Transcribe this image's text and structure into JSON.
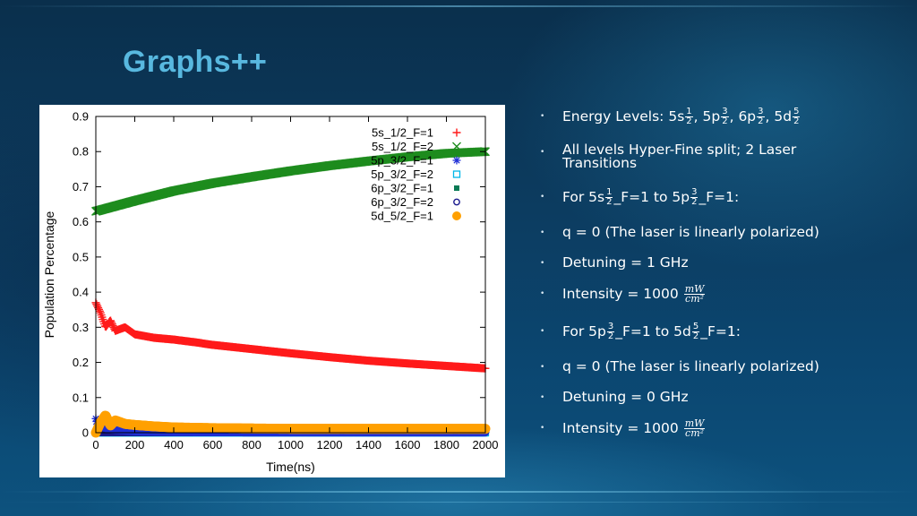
{
  "slide": {
    "title": "Graphs++"
  },
  "bullets": {
    "energy": {
      "prefix": "Energy Levels: ",
      "s": "5s",
      "p1": ", 5p",
      "p2": ", 6p",
      "p3": ", 5d"
    },
    "hyperfine": "All levels Hyper-Fine split; 2 Laser Transitions",
    "t1": {
      "pre": "For 5s",
      "mid": "_F=1 to 5p",
      "post": "_F=1:"
    },
    "q1": "q = 0 (The laser is linearly polarized)",
    "det1": "Detuning = 1 GHz",
    "int1": "Intensity = 1000 ",
    "t2": {
      "pre": "For 5p",
      "mid": "_F=1 to 5d",
      "post": "_F=1:"
    },
    "q2": "q = 0 (The laser is linearly polarized)",
    "det2": "Detuning = 0 GHz",
    "int2": "Intensity = 1000 ",
    "frac_1_2": {
      "num": "1",
      "den": "2"
    },
    "frac_3_2": {
      "num": "3",
      "den": "2"
    },
    "frac_5_2": {
      "num": "5",
      "den": "2"
    },
    "unit": {
      "num": "mW",
      "den": "cm²"
    },
    "bullet_glyph": "•"
  },
  "chart_data": {
    "type": "scatter",
    "xlabel": "Time(ns)",
    "ylabel": "Population Percentage",
    "xlim": [
      0,
      2000
    ],
    "ylim": [
      0,
      0.9
    ],
    "xticks": [
      0,
      200,
      400,
      600,
      800,
      1000,
      1200,
      1400,
      1600,
      1800,
      2000
    ],
    "yticks": [
      0,
      0.1,
      0.2,
      0.3,
      0.4,
      0.5,
      0.6,
      0.7,
      0.8,
      0.9
    ],
    "ytick_labels": [
      "0",
      "0.1",
      "0.2",
      "0.3",
      "0.4",
      "0.5",
      "0.6",
      "0.7",
      "0.8",
      "0.9"
    ],
    "grid": false,
    "legend_position": "top-right",
    "series": [
      {
        "name": "5s_1/2_F=1",
        "marker": "plus",
        "color": "#ff1a1a",
        "x": [
          0,
          25,
          50,
          75,
          100,
          150,
          200,
          300,
          400,
          500,
          600,
          800,
          1000,
          1200,
          1400,
          1600,
          1800,
          2000
        ],
        "y": [
          0.37,
          0.34,
          0.3,
          0.32,
          0.29,
          0.3,
          0.28,
          0.27,
          0.265,
          0.258,
          0.25,
          0.238,
          0.226,
          0.215,
          0.205,
          0.197,
          0.19,
          0.183
        ]
      },
      {
        "name": "5s_1/2_F=2",
        "marker": "cross",
        "color": "#1e8c1e",
        "x": [
          0,
          100,
          200,
          400,
          600,
          800,
          1000,
          1200,
          1400,
          1600,
          1800,
          2000
        ],
        "y": [
          0.63,
          0.645,
          0.66,
          0.688,
          0.71,
          0.728,
          0.745,
          0.76,
          0.773,
          0.785,
          0.795,
          0.8
        ]
      },
      {
        "name": "5p_3/2_F=1",
        "marker": "star",
        "color": "#1f2fd6",
        "x": [
          0,
          10,
          25,
          50,
          100,
          200,
          400,
          800,
          1200,
          1600,
          2000
        ],
        "y": [
          0.04,
          0.02,
          0.03,
          0.012,
          0.008,
          0.004,
          0.002,
          0.001,
          0.001,
          0.001,
          0.001
        ]
      },
      {
        "name": "5p_3/2_F=2",
        "marker": "open-square",
        "color": "#00b7e8",
        "x": [
          0,
          400,
          800,
          1200,
          1600,
          2000
        ],
        "y": [
          0.0,
          0.0,
          0.0,
          0.0,
          0.0,
          0.0
        ]
      },
      {
        "name": "6p_3/2_F=1",
        "marker": "filled-square",
        "color": "#0a7a55",
        "x": [
          0,
          200,
          400,
          800,
          1200,
          1600,
          2000
        ],
        "y": [
          0.002,
          0.002,
          0.002,
          0.002,
          0.002,
          0.002,
          0.002
        ]
      },
      {
        "name": "6p_3/2_F=2",
        "marker": "open-circle",
        "color": "#1b1a8e",
        "x": [
          0,
          400,
          800,
          1200,
          1600,
          2000
        ],
        "y": [
          0.0,
          0.0,
          0.0,
          0.0,
          0.0,
          0.0
        ]
      },
      {
        "name": "5d_5/2_F=1",
        "marker": "filled-circle",
        "color": "#ffa000",
        "x": [
          0,
          25,
          50,
          75,
          100,
          150,
          200,
          300,
          400,
          600,
          800,
          1000,
          1200,
          1400,
          1600,
          1800,
          2000
        ],
        "y": [
          0.0,
          0.03,
          0.05,
          0.02,
          0.035,
          0.025,
          0.022,
          0.018,
          0.015,
          0.013,
          0.012,
          0.011,
          0.011,
          0.011,
          0.011,
          0.011,
          0.011
        ]
      }
    ]
  }
}
